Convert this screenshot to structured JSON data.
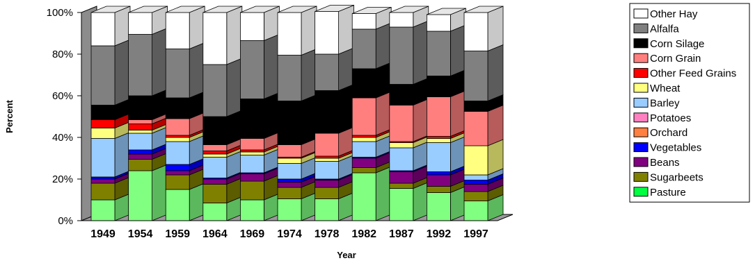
{
  "chart_data": {
    "type": "bar",
    "stacked": true,
    "style": "3d",
    "title": "",
    "xlabel": "Year",
    "ylabel": "Percent",
    "ylim": [
      0,
      100
    ],
    "yticks": [
      "0%",
      "20%",
      "40%",
      "60%",
      "80%",
      "100%"
    ],
    "grid": false,
    "legend_position": "right",
    "categories": [
      "1949",
      "1954",
      "1959",
      "1964",
      "1969",
      "1974",
      "1978",
      "1982",
      "1987",
      "1992",
      "1997"
    ],
    "series": [
      {
        "name": "Pasture",
        "color": "#80ff80",
        "values": [
          10,
          24,
          15,
          8.5,
          10,
          10.5,
          10.5,
          23,
          15.5,
          13.5,
          9.5
        ]
      },
      {
        "name": "Sugarbeets",
        "color": "#808000",
        "values": [
          8,
          5.5,
          7,
          9,
          9,
          5.5,
          5.5,
          2.5,
          2.5,
          3,
          4.5
        ]
      },
      {
        "name": "Beans",
        "color": "#800080",
        "values": [
          2,
          2.5,
          2,
          2.5,
          3.5,
          2.5,
          3.5,
          4.5,
          5.5,
          5.5,
          3.5
        ]
      },
      {
        "name": "Vegetables",
        "color": "#0000ff",
        "values": [
          1,
          2,
          3,
          0.5,
          0.5,
          1.5,
          0.5,
          0.5,
          0.5,
          1.5,
          2
        ]
      },
      {
        "name": "Orchard",
        "color": "#ff8040",
        "values": [
          0,
          0,
          0,
          0,
          0,
          0,
          0,
          0,
          0,
          0,
          0
        ]
      },
      {
        "name": "Potatoes",
        "color": "#ff80c0",
        "values": [
          0,
          0,
          0,
          0,
          0,
          0,
          0,
          0,
          0,
          0,
          0
        ]
      },
      {
        "name": "Barley",
        "color": "#99ccff",
        "values": [
          18.5,
          8,
          11,
          10,
          8.5,
          7.5,
          8.5,
          7.5,
          11,
          14,
          2.5
        ]
      },
      {
        "name": "Wheat",
        "color": "#ffff80",
        "values": [
          5,
          1.5,
          2,
          1.5,
          1.5,
          2.5,
          1.5,
          2,
          2.5,
          2,
          14
        ]
      },
      {
        "name": "Other Feed Grains",
        "color": "#ff0000",
        "values": [
          4,
          3,
          1,
          1.5,
          1,
          0.5,
          1,
          1,
          0.5,
          1,
          0
        ]
      },
      {
        "name": "Corn Grain",
        "color": "#ff7f7f",
        "values": [
          0,
          2,
          8,
          3,
          5.5,
          6,
          11,
          18,
          17.5,
          19,
          16.5
        ]
      },
      {
        "name": "Corn Silage",
        "color": "#000000",
        "values": [
          7,
          11.5,
          10,
          13.5,
          19,
          21,
          20.5,
          14,
          10,
          10,
          5
        ]
      },
      {
        "name": "Alfalfa",
        "color": "#808080",
        "values": [
          28.5,
          29.5,
          23.5,
          25,
          28,
          22,
          17.5,
          19,
          27.5,
          21.5,
          24
        ]
      },
      {
        "name": "Other Hay",
        "color": "#ffffff",
        "values": [
          16,
          10.5,
          17.5,
          25,
          13.5,
          20.5,
          20.5,
          7.5,
          7,
          8,
          18.5
        ]
      }
    ],
    "legend_order": [
      "Other Hay",
      "Alfalfa",
      "Corn Silage",
      "Corn Grain",
      "Other Feed Grains",
      "Wheat",
      "Barley",
      "Potatoes",
      "Orchard",
      "Vegetables",
      "Beans",
      "Sugarbeets",
      "Pasture"
    ],
    "legend_swatch_colors": {
      "Pasture": "#00ff40"
    }
  }
}
